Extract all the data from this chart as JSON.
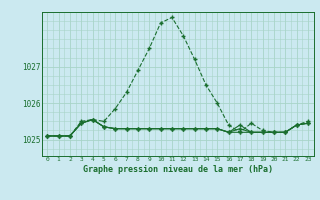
{
  "title": "Graphe pression niveau de la mer (hPa)",
  "background_color": "#cbe9f0",
  "grid_color": "#a8d4c8",
  "line_color": "#1a6e2e",
  "x_labels": [
    "0",
    "1",
    "2",
    "3",
    "4",
    "5",
    "6",
    "7",
    "8",
    "9",
    "10",
    "11",
    "12",
    "13",
    "14",
    "15",
    "16",
    "17",
    "18",
    "19",
    "20",
    "21",
    "22",
    "23"
  ],
  "ylim": [
    1024.55,
    1028.5
  ],
  "yticks": [
    1025,
    1026,
    1027
  ],
  "series1": [
    1025.1,
    1025.1,
    1025.1,
    1025.5,
    1025.55,
    1025.5,
    1025.85,
    1026.3,
    1026.9,
    1027.5,
    1028.2,
    1028.35,
    1027.85,
    1027.2,
    1026.5,
    1026.0,
    1025.4,
    1025.2,
    1025.45,
    1025.25,
    1025.2,
    1025.2,
    1025.4,
    1025.5
  ],
  "series2": [
    1025.1,
    1025.1,
    1025.1,
    1025.45,
    1025.55,
    1025.35,
    1025.3,
    1025.3,
    1025.3,
    1025.3,
    1025.3,
    1025.3,
    1025.3,
    1025.3,
    1025.3,
    1025.3,
    1025.2,
    1025.2,
    1025.2,
    1025.2,
    1025.2,
    1025.2,
    1025.4,
    1025.45
  ],
  "series3": [
    1025.1,
    1025.1,
    1025.1,
    1025.45,
    1025.55,
    1025.35,
    1025.3,
    1025.3,
    1025.3,
    1025.3,
    1025.3,
    1025.3,
    1025.3,
    1025.3,
    1025.3,
    1025.3,
    1025.2,
    1025.4,
    1025.2,
    1025.2,
    1025.2,
    1025.2,
    1025.4,
    1025.45
  ],
  "series4": [
    1025.1,
    1025.1,
    1025.1,
    1025.45,
    1025.55,
    1025.35,
    1025.3,
    1025.3,
    1025.3,
    1025.3,
    1025.3,
    1025.3,
    1025.3,
    1025.3,
    1025.3,
    1025.3,
    1025.2,
    1025.3,
    1025.2,
    1025.2,
    1025.2,
    1025.2,
    1025.4,
    1025.45
  ]
}
